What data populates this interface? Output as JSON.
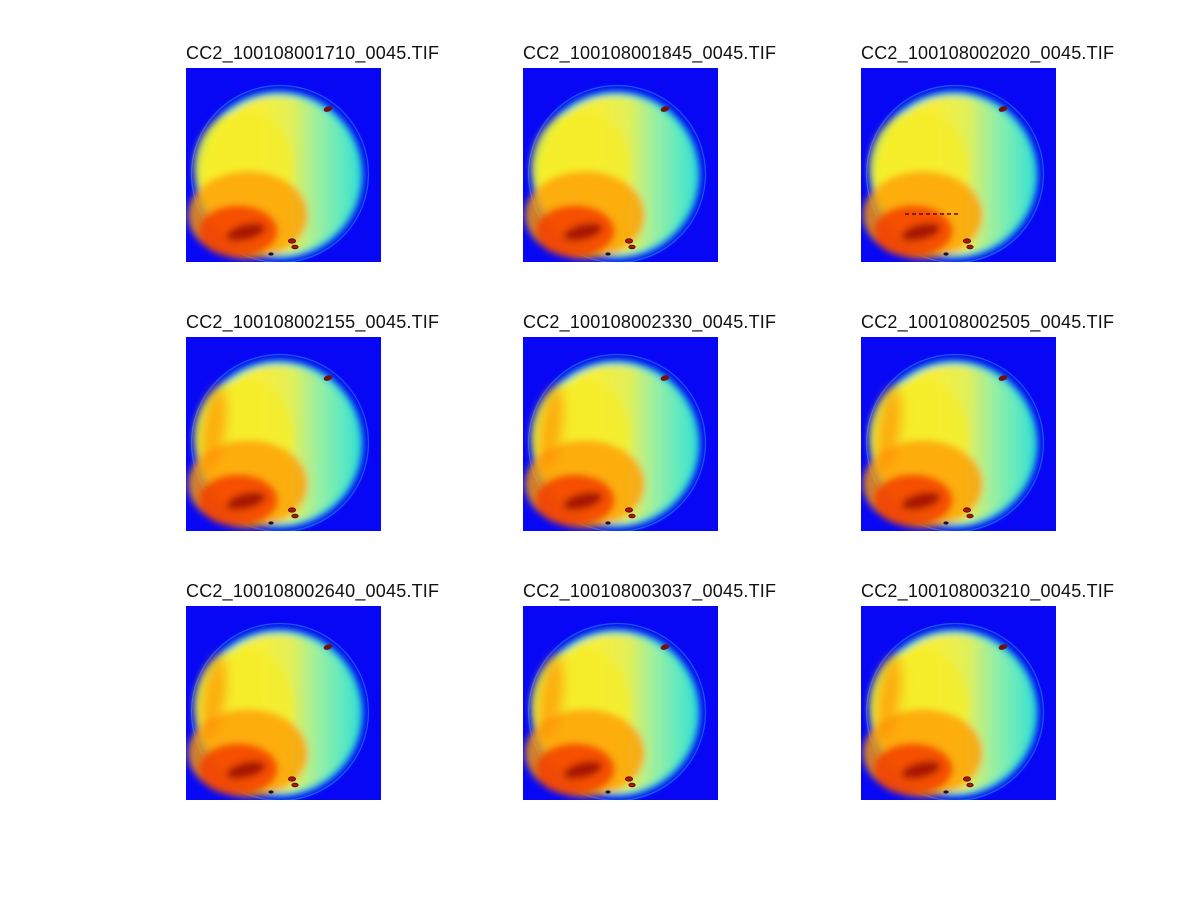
{
  "window": {
    "background_color": "#ffffff",
    "title_text_color": "#111111"
  },
  "figure": {
    "grid": {
      "rows": 3,
      "cols": 3
    },
    "tiles": [
      {
        "title": "CC2_100108001710_0045.TIF",
        "features": []
      },
      {
        "title": "CC2_100108001845_0045.TIF",
        "features": []
      },
      {
        "title": "CC2_100108002020_0045.TIF",
        "features": [
          "dashed-line"
        ]
      },
      {
        "title": "CC2_100108002155_0045.TIF",
        "features": [
          "left-streak"
        ]
      },
      {
        "title": "CC2_100108002330_0045.TIF",
        "features": [
          "left-streak"
        ]
      },
      {
        "title": "CC2_100108002505_0045.TIF",
        "features": [
          "left-streak"
        ]
      },
      {
        "title": "CC2_100108002640_0045.TIF",
        "features": [
          "left-streak"
        ]
      },
      {
        "title": "CC2_100108003037_0045.TIF",
        "features": [
          "left-streak"
        ]
      },
      {
        "title": "CC2_100108003210_0045.TIF",
        "features": [
          "left-streak"
        ]
      }
    ]
  },
  "chart_data": {
    "type": "heatmap",
    "subtype": "false-color image montage (jet colormap), 3x3 subplots, no axes or colorbars shown",
    "subplot_titles": [
      "CC2_100108001710_0045.TIF",
      "CC2_100108001845_0045.TIF",
      "CC2_100108002020_0045.TIF",
      "CC2_100108002155_0045.TIF",
      "CC2_100108002330_0045.TIF",
      "CC2_100108002505_0045.TIF",
      "CC2_100108002640_0045.TIF",
      "CC2_100108003037_0045.TIF",
      "CC2_100108003210_0045.TIF"
    ],
    "colormap": "jet",
    "content_description": "Each subplot: circular disk on saturated blue background; cyan-teal rim; interior yellow on left/top grading to pale mint-green on right; orange-to-red hot region in lower-left with dark-red core; small maroon speck on upper-right rim; two small dark-red specks near bottom-center of disk; tiny dark speck at bottom edge; subplot 3 additionally shows a short dark dashed horizontal scratch line in the red region; rows 2-3 show an orange streak along the upper-left rim",
    "xlabel": "",
    "ylabel": "",
    "legend": null,
    "grid": false,
    "colors": {
      "background_blue": "#0707f5",
      "rim_teal": "#16d2d8",
      "halo_ring": "#3aa8f0",
      "interior_yellow": "#f4ef2e",
      "interior_mint": "#5fe9c0",
      "hot_orange": "#ff9d00",
      "hot_red": "#f54000",
      "dark_red_core": "#a01200",
      "maroon_speck": "#6e1212"
    }
  }
}
